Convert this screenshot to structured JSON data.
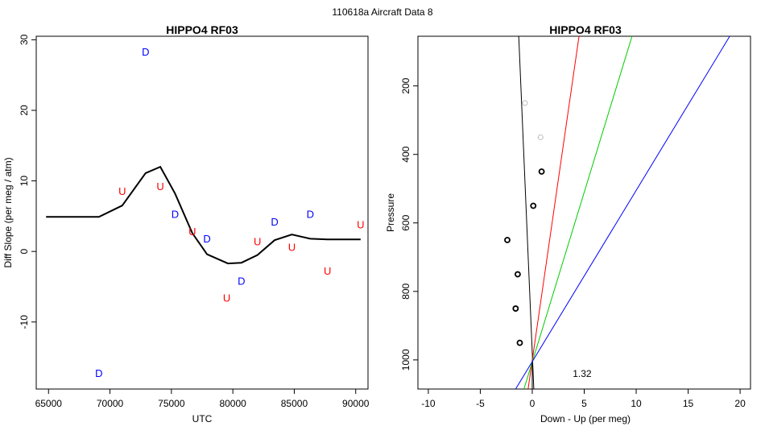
{
  "suptitle": "110618a   Aircraft Data 8",
  "chart_data": [
    {
      "type": "scatter",
      "title": "HIPPO4 RF03",
      "xlabel": "UTC",
      "ylabel": "Diff Slope (per meg / atm)",
      "xlim": [
        64000,
        91000
      ],
      "ylim": [
        -19.5,
        30.5
      ],
      "xticks": [
        65000,
        70000,
        75000,
        80000,
        85000,
        90000
      ],
      "yticks": [
        -10,
        0,
        10,
        20,
        30
      ],
      "colors": {
        "D": "#0000ff",
        "U": "#ff0000",
        "line": "#000000"
      },
      "line": {
        "name": "smooth fit",
        "x": [
          64800,
          69100,
          71000,
          72900,
          74100,
          75300,
          76700,
          77900,
          79600,
          80700,
          82000,
          83400,
          84800,
          86300,
          87700,
          90400
        ],
        "y": [
          4.9,
          4.9,
          6.5,
          11.1,
          12.0,
          8.2,
          2.6,
          -0.4,
          -1.7,
          -1.6,
          -0.5,
          1.6,
          2.4,
          1.8,
          1.7,
          1.7
        ]
      },
      "points": [
        {
          "label": "D",
          "x": 72900,
          "y": 28.3
        },
        {
          "label": "U",
          "x": 71000,
          "y": 8.5
        },
        {
          "label": "U",
          "x": 74100,
          "y": 9.2
        },
        {
          "label": "D",
          "x": 75300,
          "y": 5.3
        },
        {
          "label": "U",
          "x": 76700,
          "y": 2.8
        },
        {
          "label": "D",
          "x": 77900,
          "y": 1.8
        },
        {
          "label": "U",
          "x": 79500,
          "y": -6.6
        },
        {
          "label": "D",
          "x": 80700,
          "y": -4.2
        },
        {
          "label": "U",
          "x": 82000,
          "y": 1.4
        },
        {
          "label": "D",
          "x": 83400,
          "y": 4.2
        },
        {
          "label": "U",
          "x": 84800,
          "y": 0.6
        },
        {
          "label": "D",
          "x": 86300,
          "y": 5.3
        },
        {
          "label": "U",
          "x": 87700,
          "y": -2.8
        },
        {
          "label": "U",
          "x": 90400,
          "y": 3.8
        },
        {
          "label": "D",
          "x": 69100,
          "y": -17.3
        }
      ]
    },
    {
      "type": "scatter",
      "title": "HIPPO4 RF03",
      "xlabel": "Down - Up (per meg)",
      "ylabel": "Pressure",
      "xlim": [
        -11,
        21
      ],
      "ylim": [
        1085,
        55
      ],
      "xticks": [
        -10,
        -5,
        0,
        5,
        10,
        15,
        20
      ],
      "yticks": [
        200,
        400,
        600,
        800,
        1000
      ],
      "annotation": {
        "text": "1.32",
        "x": 4.8,
        "pressure": 1040
      },
      "points": [
        {
          "x": -0.7,
          "pressure": 250,
          "color": "#bbbbbb"
        },
        {
          "x": 0.8,
          "pressure": 350,
          "color": "#bbbbbb"
        },
        {
          "x": 0.9,
          "pressure": 450,
          "color": "#000000"
        },
        {
          "x": 0.1,
          "pressure": 550,
          "color": "#000000"
        },
        {
          "x": -2.4,
          "pressure": 650,
          "color": "#000000"
        },
        {
          "x": -1.4,
          "pressure": 750,
          "color": "#000000"
        },
        {
          "x": -1.6,
          "pressure": 850,
          "color": "#000000"
        },
        {
          "x": -1.2,
          "pressure": 950,
          "color": "#000000"
        }
      ],
      "lines": [
        {
          "name": "black fit",
          "color": "#000000",
          "x1": -1.3,
          "p1": 55,
          "x2": 0.15,
          "p2": 1085
        },
        {
          "name": "red fit",
          "color": "#ff0000",
          "x1": 4.5,
          "p1": 55,
          "x2": -0.4,
          "p2": 1085
        },
        {
          "name": "green fit",
          "color": "#00cc00",
          "x1": 9.6,
          "p1": 55,
          "x2": -0.8,
          "p2": 1085
        },
        {
          "name": "blue fit",
          "color": "#0000ff",
          "x1": 19.0,
          "p1": 55,
          "x2": -1.6,
          "p2": 1085
        },
        {
          "name": "vertical ref",
          "color": "#000000",
          "x1": 0.0,
          "p1": 1010,
          "x2": 0.0,
          "p2": 1085
        }
      ]
    }
  ]
}
